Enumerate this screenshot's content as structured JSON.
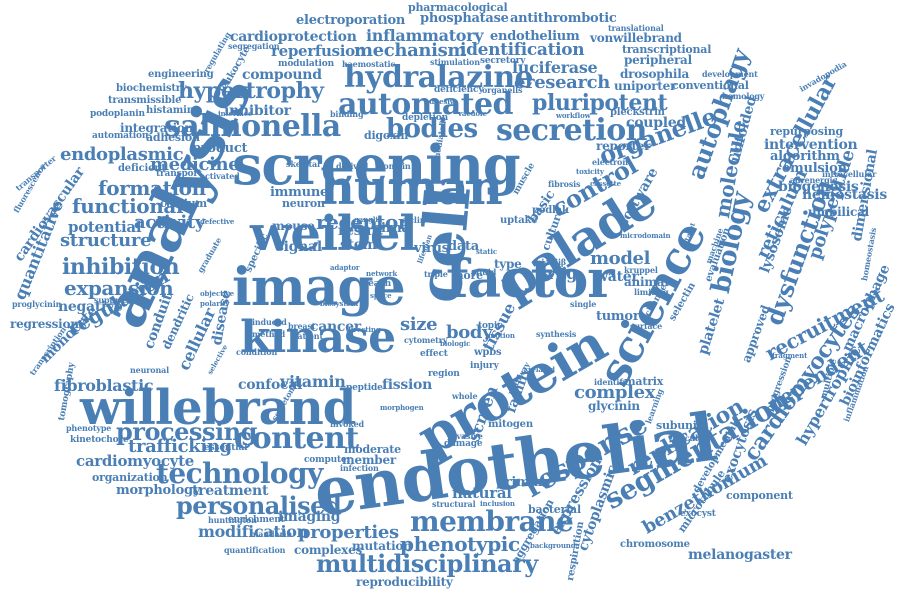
{
  "color": "#4a7fb5",
  "words": [
    "pharmacological",
    "electroporation",
    "phosphatase",
    "antithrombotic",
    "translational",
    "cardioprotection",
    "inflammatory",
    "endothelium",
    "vonwillebrand",
    "segregation",
    "reperfusion",
    "mechanism",
    "identification",
    "transcriptional",
    "regulating",
    "modulation",
    "haemostatic",
    "stimulation",
    "secretory",
    "peripheral",
    "compound",
    "leukocyte",
    "luciferase",
    "engineering",
    "drosophila",
    "development",
    "hydralazine",
    "uniporter",
    "conventional",
    "biochemistry",
    "hypertrophy",
    "eresearch",
    "pluripotent",
    "transmissible",
    "automated",
    "deficiency",
    "organells",
    "histamine",
    "adhesive",
    "podoplanin",
    "interface",
    "binding",
    "vacuole",
    "workflow",
    "pleckstrin",
    "salmonella",
    "integration",
    "depletion",
    "bodies",
    "secretion",
    "coupled",
    "automation",
    "adhesion",
    "inhibitor",
    "digoxin",
    "autophagy",
    "homology",
    "endoplasmic",
    "product",
    "organelle",
    "unfolded",
    "reporter",
    "screening",
    "intervention",
    "medicine",
    "mediated",
    "electron",
    "extracellular",
    "invadopodia",
    "repurposing",
    "biochem",
    "transport",
    "deficient",
    "skeletal",
    "derived",
    "domain",
    "algorithm",
    "activated",
    "toxicity",
    "cassette",
    "human",
    "emulsion",
    "intracellular",
    "transporter",
    "formation",
    "control",
    "molecule",
    "adrenergic",
    "biogenesis",
    "calcium",
    "fibrosis",
    "hemostasis",
    "fluorescence",
    "functional",
    "immune",
    "neuron",
    "analysis",
    "muscle",
    "software",
    "podlak",
    "weibel",
    "umbilical",
    "activity",
    "receptor",
    "mouse",
    "siclin",
    "sirna",
    "uptake",
    "reticulum",
    "potential",
    "ganglia",
    "palade",
    "structure",
    "defective",
    "result",
    "basic",
    "lysosome",
    "microdomain",
    "evaluation",
    "polypeptide",
    "dimensional",
    "quantitative",
    "signal",
    "stem",
    "virus",
    "data",
    "model",
    "biology",
    "dysfunction",
    "inhibition",
    "specific",
    "static",
    "cell",
    "kruppel",
    "homeostasis",
    "graduate",
    "adaptor",
    "dendritic",
    "cardiovascular",
    "type",
    "pi4kiiβ",
    "drug",
    "dataset",
    "machine",
    "water",
    "animal",
    "limiting",
    "image",
    "factor",
    "exocytosis",
    "expansion",
    "peach",
    "triple",
    "science",
    "fluid",
    "culture",
    "lifespan",
    "proglycinin",
    "tumor",
    "recruitment",
    "macrophage",
    "negative",
    "objective",
    "space",
    "more",
    "suppresses",
    "network",
    "platelet",
    "kinase",
    "bioinformatics",
    "regression",
    "polarity",
    "cancer",
    "biosystem",
    "size",
    "change",
    "selectin",
    "body",
    "tissue",
    "topic",
    "single",
    "surface",
    "monocyte",
    "regulation",
    "induced",
    "breast",
    "protein",
    "motion",
    "disease",
    "conduit",
    "method",
    "patient",
    "directing",
    "dependent",
    "approved",
    "cellular",
    "biologic",
    "fragment",
    "multiple",
    "wpbs",
    "condition",
    "effect",
    "cytometry",
    "synthesis",
    "neuronal",
    "injury",
    "selective",
    "transcription",
    "vitamin",
    "confocal",
    "fission",
    "peptide",
    "fibroblastic",
    "region",
    "related",
    "identify",
    "matrix",
    "inflammation",
    "complex",
    "willebrand",
    "stem",
    "whole",
    "pathway",
    "glycinin",
    "hypertrophic",
    "morphogen",
    "tomography",
    "cardiomyocytes",
    "progression",
    "phenotype",
    "subunit",
    "kinetochore",
    "secretome",
    "invoked",
    "mitogen",
    "damage",
    "content",
    "screen",
    "invasive",
    "family",
    "processing",
    "vesicular",
    "essential",
    "endothelial",
    "learning",
    "trafficking",
    "computer",
    "membrane",
    "infection",
    "moderate",
    "member",
    "cardiomyocyte",
    "segmentation",
    "technology",
    "organization",
    "developmental",
    "component",
    "replication",
    "personalised",
    "morphology",
    "treatment",
    "response",
    "natural",
    "primary",
    "imaging",
    "benzethonium",
    "enrichment",
    "huntington",
    "exocyst",
    "bacterial",
    "microtubule",
    "modification",
    "structural",
    "inclusion",
    "properties",
    "melanogaster",
    "aggregation",
    "expression",
    "cytoplasmic",
    "chromosome",
    "mandarin",
    "complexes",
    "mutation",
    "multidisciplinary",
    "quantification",
    "respiration",
    "background",
    "phenotypic",
    "reproducibility"
  ]
}
